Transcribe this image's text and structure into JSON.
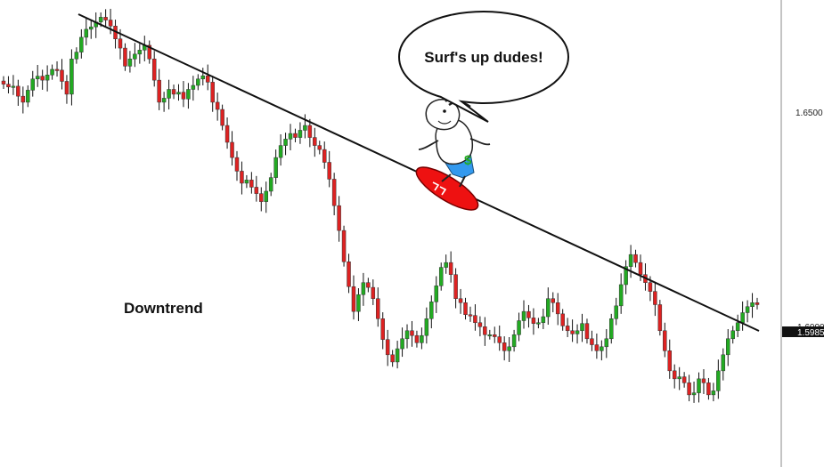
{
  "colors": {
    "bull": "#22aa22",
    "bear": "#dd2222",
    "wick": "#111111",
    "trendline": "#111111",
    "surfboard": "#ee1111",
    "shorts": "#3399ee",
    "price_tag_bg": "#111111"
  },
  "chart_data": {
    "type": "candlestick",
    "title": "",
    "annotations": {
      "label": "Downtrend",
      "speech_bubble": "Surf's up dudes!",
      "shirt_symbol": "$"
    },
    "y_axis": {
      "ticks": [
        {
          "value": 1.65,
          "label": "1.6500"
        },
        {
          "value": 1.6,
          "label": "1.6000"
        }
      ],
      "range": [
        1.558,
        1.6745
      ]
    },
    "current_price": {
      "value": 1.5985,
      "label": "1.5985"
    },
    "trendline": {
      "start": {
        "x": 0,
        "y": 1.6705
      },
      "end": {
        "x": 1,
        "y": 1.5985
      }
    },
    "closes": [
      1.6535,
      1.6528,
      1.653,
      1.6505,
      1.649,
      1.652,
      1.6548,
      1.6555,
      1.6545,
      1.6558,
      1.6572,
      1.657,
      1.6542,
      1.651,
      1.6598,
      1.6615,
      1.6652,
      1.6672,
      1.6678,
      1.669,
      1.6702,
      1.6695,
      1.668,
      1.6648,
      1.6625,
      1.658,
      1.6598,
      1.661,
      1.662,
      1.6632,
      1.6598,
      1.6545,
      1.649,
      1.65,
      1.6522,
      1.651,
      1.6515,
      1.6498,
      1.6522,
      1.6532,
      1.6548,
      1.6556,
      1.654,
      1.649,
      1.6472,
      1.6432,
      1.639,
      1.6352,
      1.6318,
      1.6288,
      1.6296,
      1.6278,
      1.6262,
      1.6242,
      1.6268,
      1.6302,
      1.6352,
      1.6382,
      1.6398,
      1.6412,
      1.6402,
      1.642,
      1.6432,
      1.6402,
      1.6382,
      1.6372,
      1.634,
      1.6298,
      1.6232,
      1.617,
      1.6092,
      1.603,
      1.5968,
      1.601,
      1.604,
      1.6028,
      1.6,
      1.595,
      1.5898,
      1.586,
      1.5842,
      1.5875,
      1.59,
      1.592,
      1.5908,
      1.589,
      1.5908,
      1.595,
      1.5992,
      1.6032,
      1.6078,
      1.609,
      1.606,
      1.6,
      1.599,
      1.596,
      1.5958,
      1.594,
      1.593,
      1.591,
      1.591,
      1.5905,
      1.589,
      1.587,
      1.588,
      1.591,
      1.5945,
      1.5968,
      1.5952,
      1.5938,
      1.594,
      1.5955,
      1.6,
      1.599,
      1.5962,
      1.5932,
      1.592,
      1.5912,
      1.592,
      1.5938,
      1.59,
      1.5885,
      1.587,
      1.588,
      1.59,
      1.595,
      1.5982,
      1.6035,
      1.608,
      1.611,
      1.609,
      1.606,
      1.604,
      1.6018,
      1.5985,
      1.592,
      1.587,
      1.582,
      1.58,
      1.5805,
      1.579,
      1.576,
      1.5765,
      1.58,
      1.579,
      1.576,
      1.577,
      1.582,
      1.586,
      1.59,
      1.592,
      1.594,
      1.5965,
      1.598,
      1.599,
      1.5985
    ]
  }
}
